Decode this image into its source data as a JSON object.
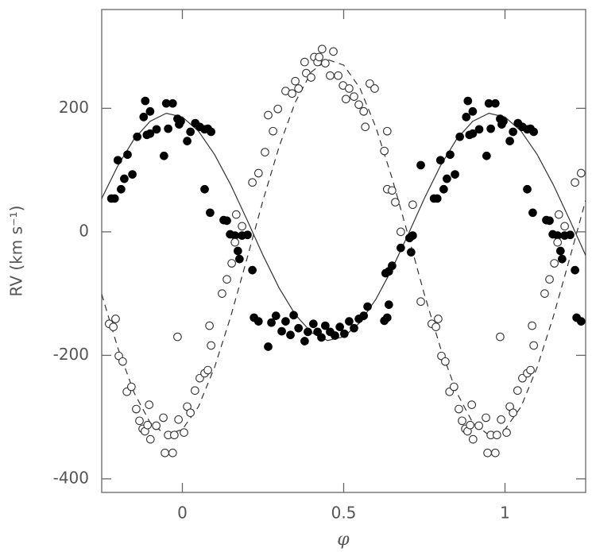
{
  "chart_data": {
    "type": "scatter",
    "xlabel": "φ",
    "ylabel": "RV (km s⁻¹)",
    "xlim": [
      -0.25,
      1.25
    ],
    "ylim": [
      -422,
      360
    ],
    "xticks": [
      0,
      0.5,
      1
    ],
    "yticks": [
      -400,
      -200,
      0,
      200
    ],
    "series": [
      {
        "type": "line",
        "style": "solid",
        "color": "#333333",
        "x": [
          -0.25,
          -0.2,
          -0.15,
          -0.1,
          -0.05,
          0,
          0.05,
          0.1,
          0.15,
          0.2,
          0.25,
          0.3,
          0.35,
          0.4,
          0.45,
          0.5,
          0.55,
          0.6,
          0.65,
          0.7,
          0.75,
          0.8,
          0.85,
          0.9,
          0.95,
          1,
          1.05,
          1.1,
          1.15,
          1.2,
          1.25
        ],
        "values": [
          54,
          107,
          150,
          179,
          192,
          186,
          163,
          125,
          76,
          20,
          -38,
          -91,
          -134,
          -163,
          -176,
          -170,
          -147,
          -109,
          -60,
          -4,
          54,
          107,
          150,
          179,
          192,
          186,
          163,
          125,
          76,
          20,
          -38
        ]
      },
      {
        "type": "line",
        "style": "dashed",
        "color": "#333333",
        "x": [
          -0.25,
          -0.2,
          -0.15,
          -0.1,
          -0.05,
          0,
          0.05,
          0.1,
          0.15,
          0.2,
          0.25,
          0.3,
          0.35,
          0.4,
          0.45,
          0.5,
          0.55,
          0.6,
          0.65,
          0.7,
          0.75,
          0.8,
          0.85,
          0.9,
          0.95,
          1,
          1.05,
          1.1,
          1.15,
          1.2,
          1.25
        ],
        "values": [
          -101,
          -188,
          -260,
          -309,
          -329,
          -320,
          -283,
          -219,
          -137,
          -44,
          51,
          138,
          210,
          259,
          279,
          270,
          233,
          169,
          87,
          -6,
          -101,
          -188,
          -260,
          -309,
          -329,
          -320,
          -283,
          -219,
          -137,
          -44,
          51
        ]
      },
      {
        "type": "scatter",
        "marker": "filled",
        "color": "#000000",
        "x": [
          -0.22,
          -0.21,
          -0.2,
          -0.19,
          -0.18,
          -0.17,
          -0.155,
          -0.14,
          -0.12,
          -0.115,
          -0.11,
          -0.1,
          -0.1,
          -0.08,
          -0.057,
          -0.05,
          -0.03,
          -0.044,
          -0.015,
          -0.01,
          -0.005,
          0.015,
          0.025,
          0.04,
          0.054,
          0.069,
          0.079,
          0.089,
          0.069,
          0.086,
          0.128,
          0.138,
          0.148,
          0.163,
          0.172,
          0.177,
          0.185,
          0.202,
          0.217,
          0.222,
          0.236,
          0.266,
          0.276,
          0.29,
          0.308,
          0.32,
          0.335,
          0.345,
          0.36,
          0.379,
          0.389,
          0.406,
          0.419,
          0.431,
          0.443,
          0.458,
          0.473,
          0.488,
          0.502,
          0.517,
          0.532,
          0.547,
          0.562,
          0.574,
          0.626,
          0.635,
          0.64,
          0.63,
          0.64,
          0.65,
          0.677,
          0.704,
          0.709,
          0.714,
          0.739,
          0.78,
          0.79,
          0.8,
          0.81,
          0.82,
          0.83,
          0.845,
          0.86,
          0.88,
          0.885,
          0.89,
          0.9,
          0.9,
          0.92,
          0.943,
          0.95,
          0.97,
          0.956,
          0.985,
          0.99,
          0.995,
          1.015,
          1.025,
          1.04,
          1.054,
          1.069,
          1.079,
          1.089,
          1.069,
          1.086,
          1.128,
          1.138,
          1.148,
          1.163,
          1.172,
          1.177,
          1.185,
          1.202,
          1.217,
          1.222,
          1.236
        ],
        "values": [
          54,
          54,
          116,
          69,
          86,
          125,
          93,
          154,
          186,
          212,
          157,
          195,
          159,
          166,
          123,
          208,
          208,
          167,
          183,
          174,
          179,
          147,
          162,
          176,
          170,
          166,
          167,
          162,
          69,
          31,
          19,
          18,
          -4,
          -6,
          -31,
          -44,
          -6,
          -5,
          -62,
          -139,
          -145,
          -186,
          -147,
          -136,
          -161,
          -145,
          -167,
          -135,
          -156,
          -177,
          -162,
          -149,
          -162,
          -171,
          -152,
          -162,
          -168,
          -154,
          -165,
          -145,
          -156,
          -141,
          -136,
          -121,
          -144,
          -139,
          -118,
          -67,
          -64,
          -55,
          -26,
          -10,
          -33,
          -6,
          108,
          54,
          54,
          116,
          69,
          86,
          125,
          93,
          154,
          186,
          212,
          157,
          195,
          159,
          166,
          123,
          208,
          208,
          167,
          183,
          174,
          179,
          147,
          162,
          176,
          170,
          166,
          167,
          162,
          69,
          31,
          19,
          18,
          -4,
          -6,
          -31,
          -44,
          -6,
          -5,
          -62,
          -139,
          -145
        ]
      },
      {
        "type": "scatter",
        "marker": "open",
        "color": "#333333",
        "x": [
          -0.227,
          -0.214,
          -0.207,
          -0.197,
          -0.185,
          -0.172,
          -0.158,
          -0.143,
          -0.133,
          -0.123,
          -0.116,
          -0.108,
          -0.103,
          -0.099,
          -0.081,
          -0.059,
          -0.054,
          -0.03,
          -0.044,
          -0.025,
          -0.015,
          -0.012,
          0.005,
          0.015,
          0.025,
          0.039,
          0.054,
          0.069,
          0.079,
          0.084,
          0.089,
          0.123,
          0.138,
          0.153,
          0.163,
          0.167,
          0.185,
          0.217,
          0.236,
          0.256,
          0.266,
          0.281,
          0.296,
          0.32,
          0.34,
          0.35,
          0.36,
          0.379,
          0.384,
          0.399,
          0.409,
          0.419,
          0.424,
          0.433,
          0.443,
          0.458,
          0.468,
          0.483,
          0.498,
          0.507,
          0.517,
          0.532,
          0.547,
          0.562,
          0.567,
          0.581,
          0.596,
          0.626,
          0.635,
          0.635,
          0.65,
          0.66,
          0.677,
          0.714,
          0.739,
          0.773,
          0.786,
          0.793,
          0.803,
          0.815,
          0.828,
          0.842,
          0.857,
          0.867,
          0.877,
          0.884,
          0.892,
          0.897,
          0.901,
          0.919,
          0.941,
          0.946,
          0.97,
          0.956,
          0.975,
          0.985,
          0.988,
          1.005,
          1.015,
          1.025,
          1.039,
          1.054,
          1.069,
          1.079,
          1.084,
          1.089,
          1.123,
          1.138,
          1.153,
          1.163,
          1.167,
          1.185,
          1.217,
          1.236
        ],
        "values": [
          -149,
          -154,
          -141,
          -201,
          -210,
          -259,
          -251,
          -287,
          -306,
          -319,
          -323,
          -313,
          -280,
          -336,
          -314,
          -301,
          -358,
          -358,
          -329,
          -329,
          -170,
          -304,
          -325,
          -283,
          -293,
          -257,
          -237,
          -229,
          -224,
          -152,
          -184,
          -100,
          -77,
          -51,
          -17,
          28,
          9,
          80,
          95,
          129,
          189,
          163,
          199,
          228,
          224,
          244,
          232,
          275,
          257,
          250,
          283,
          275,
          283,
          296,
          273,
          253,
          292,
          253,
          237,
          215,
          232,
          219,
          206,
          195,
          170,
          240,
          232,
          131,
          163,
          69,
          67,
          48,
          0,
          44,
          -113,
          -149,
          -154,
          -141,
          -201,
          -210,
          -259,
          -251,
          -287,
          -306,
          -319,
          -323,
          -313,
          -280,
          -336,
          -314,
          -301,
          -358,
          -358,
          -329,
          -329,
          -170,
          -304,
          -325,
          -283,
          -293,
          -257,
          -237,
          -229,
          -224,
          -152,
          -184,
          -100,
          -77,
          -51,
          -17,
          28,
          9,
          80,
          95
        ]
      }
    ]
  }
}
